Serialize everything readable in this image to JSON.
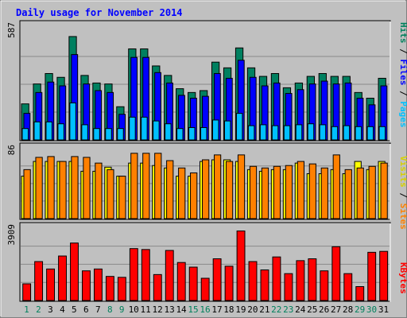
{
  "chart_data": [
    {
      "panel": "top",
      "type": "bar",
      "title": "Daily usage for November 2014",
      "ymax_label": "587",
      "ylim": [
        0,
        587
      ],
      "right_labels": [
        {
          "text": "Hits",
          "color": "#00805c"
        },
        {
          "text": "Files",
          "color": "#0000ff"
        },
        {
          "text": "Pages",
          "color": "#00c0ff"
        }
      ],
      "categories": [
        "1",
        "2",
        "3",
        "4",
        "5",
        "6",
        "7",
        "8",
        "9",
        "10",
        "11",
        "12",
        "13",
        "14",
        "15",
        "16",
        "17",
        "18",
        "19",
        "20",
        "21",
        "22",
        "23",
        "24",
        "25",
        "26",
        "27",
        "28",
        "29",
        "30",
        "31"
      ],
      "weekend_days": [
        "1",
        "2",
        "8",
        "9",
        "15",
        "16",
        "22",
        "23",
        "29",
        "30"
      ],
      "series": [
        {
          "name": "Hits",
          "color": "#008060",
          "values": [
            190,
            295,
            350,
            330,
            545,
            340,
            300,
            295,
            175,
            480,
            480,
            390,
            340,
            270,
            250,
            260,
            410,
            380,
            485,
            380,
            335,
            350,
            275,
            300,
            335,
            350,
            335,
            335,
            250,
            220,
            325
          ]
        },
        {
          "name": "Files",
          "color": "#0000ff",
          "values": [
            140,
            250,
            305,
            285,
            450,
            295,
            260,
            250,
            135,
            435,
            435,
            355,
            300,
            235,
            220,
            230,
            350,
            325,
            420,
            330,
            285,
            300,
            245,
            265,
            295,
            310,
            295,
            300,
            220,
            185,
            285
          ]
        },
        {
          "name": "Pages",
          "color": "#00c0ff",
          "values": [
            60,
            95,
            95,
            85,
            195,
            80,
            60,
            60,
            60,
            120,
            120,
            100,
            85,
            60,
            65,
            65,
            105,
            100,
            140,
            75,
            80,
            75,
            75,
            80,
            85,
            80,
            70,
            75,
            70,
            70,
            70
          ]
        }
      ]
    },
    {
      "panel": "middle",
      "type": "bar",
      "ymax_label": "86",
      "ylim": [
        0,
        86
      ],
      "right_labels": [
        {
          "text": "Visits",
          "color": "#d8d000"
        },
        {
          "text": "Sites",
          "color": "#ff8000"
        }
      ],
      "categories": [
        "1",
        "2",
        "3",
        "4",
        "5",
        "6",
        "7",
        "8",
        "9",
        "10",
        "11",
        "12",
        "13",
        "14",
        "15",
        "16",
        "17",
        "18",
        "19",
        "20",
        "21",
        "22",
        "23",
        "24",
        "25",
        "26",
        "27",
        "28",
        "29",
        "30",
        "31"
      ],
      "series": [
        {
          "name": "Visits",
          "color": "#ffff00",
          "values": [
            52,
            70,
            70,
            70,
            70,
            58,
            58,
            63,
            52,
            68,
            68,
            65,
            62,
            52,
            52,
            70,
            72,
            72,
            70,
            60,
            58,
            60,
            60,
            68,
            55,
            55,
            60,
            55,
            70,
            60,
            70
          ]
        },
        {
          "name": "Sites",
          "color": "#ff8000",
          "values": [
            60,
            75,
            76,
            70,
            76,
            75,
            68,
            60,
            52,
            80,
            80,
            80,
            71,
            62,
            56,
            72,
            78,
            70,
            78,
            64,
            62,
            64,
            65,
            70,
            67,
            62,
            78,
            60,
            62,
            64,
            68
          ]
        }
      ]
    },
    {
      "panel": "bottom",
      "type": "bar",
      "ymax_label": "3909",
      "ylim": [
        0,
        3909
      ],
      "right_labels": [
        {
          "text": "KBytes",
          "color": "#ff0000"
        }
      ],
      "categories": [
        "1",
        "2",
        "3",
        "4",
        "5",
        "6",
        "7",
        "8",
        "9",
        "10",
        "11",
        "12",
        "13",
        "14",
        "15",
        "16",
        "17",
        "18",
        "19",
        "20",
        "21",
        "22",
        "23",
        "24",
        "25",
        "26",
        "27",
        "28",
        "29",
        "30",
        "31"
      ],
      "series": [
        {
          "name": "KBytes",
          "color": "#ff0000",
          "values": [
            900,
            2100,
            1700,
            2400,
            3100,
            1600,
            1700,
            1300,
            1250,
            2800,
            2750,
            1400,
            2700,
            2050,
            1800,
            1200,
            2250,
            1850,
            3750,
            2100,
            1650,
            2350,
            1450,
            2150,
            2250,
            1600,
            2900,
            1450,
            750,
            2600,
            2650
          ]
        }
      ]
    }
  ]
}
